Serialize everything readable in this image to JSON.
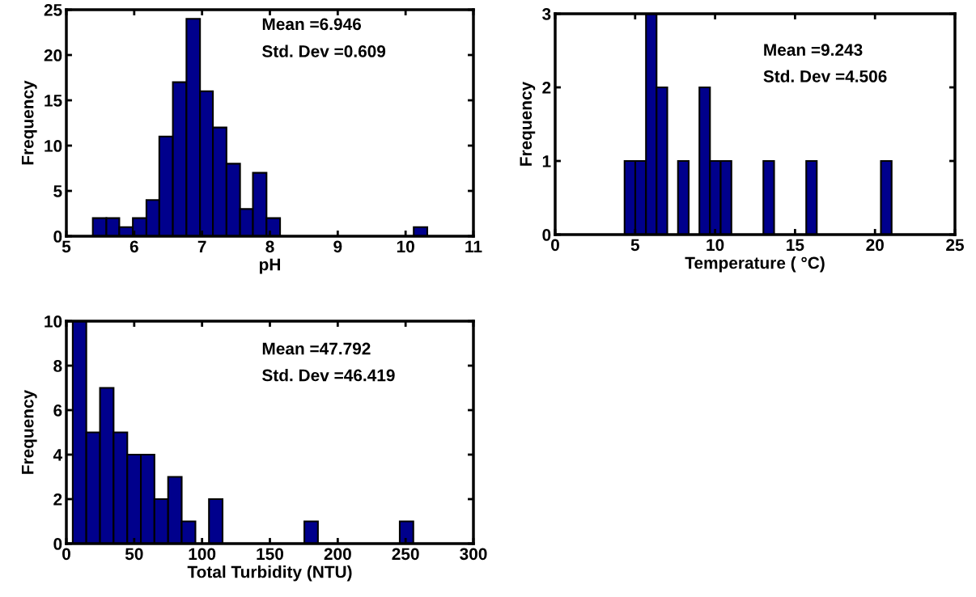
{
  "chart_data": [
    {
      "type": "histogram",
      "xlabel": "pH",
      "ylabel": "Frequency",
      "color": "#00008c",
      "bins": [
        5.39,
        5.59,
        5.78,
        5.98,
        6.18,
        6.37,
        6.57,
        6.77,
        6.97,
        7.16,
        7.36,
        7.56,
        7.75,
        7.95,
        8.15,
        8.35,
        8.54,
        8.74,
        8.94,
        9.13,
        9.33,
        9.53,
        9.72,
        9.92,
        10.12,
        10.32
      ],
      "values": [
        2,
        2,
        1,
        2,
        4,
        11,
        17,
        24,
        16,
        12,
        8,
        3,
        7,
        2,
        0,
        0,
        0,
        0,
        0,
        0,
        0,
        0,
        0,
        0,
        1
      ],
      "xlim": [
        5,
        11
      ],
      "xticks": [
        5,
        6,
        7,
        8,
        9,
        10,
        11
      ],
      "ylim": [
        0,
        25
      ],
      "yticks": [
        0,
        5,
        10,
        15,
        20,
        25
      ],
      "annotations": [
        "Mean =6.946",
        "Std. Dev =0.609"
      ]
    },
    {
      "type": "histogram",
      "xlabel": "Temperature ( °C)",
      "ylabel": "Frequency",
      "color": "#00008c",
      "bins": [
        4.34,
        5.01,
        5.68,
        6.34,
        7.01,
        7.68,
        8.35,
        9.02,
        9.68,
        10.35,
        11.02,
        11.69,
        12.36,
        13.02,
        13.69,
        14.36,
        15.03,
        15.7,
        16.36,
        17.03,
        17.7,
        18.37,
        19.04,
        19.7,
        20.37,
        21.04
      ],
      "values": [
        1,
        1,
        3,
        2,
        0,
        1,
        0,
        2,
        1,
        1,
        0,
        0,
        0,
        1,
        0,
        0,
        0,
        1,
        0,
        0,
        0,
        0,
        0,
        0,
        1
      ],
      "xlim": [
        0,
        25
      ],
      "xticks": [
        0,
        5,
        10,
        15,
        20,
        25
      ],
      "ylim": [
        0,
        3
      ],
      "yticks": [
        0,
        1,
        2,
        3
      ],
      "annotations": [
        "Mean =9.243",
        "Std. Dev =4.506"
      ]
    },
    {
      "type": "histogram",
      "xlabel": "Total Turbidity (NTU)",
      "ylabel": "Frequency",
      "color": "#00008c",
      "bins": [
        4.7,
        14.7,
        24.8,
        34.8,
        44.9,
        54.9,
        64.9,
        75.0,
        85.0,
        95.1,
        105.1,
        115.1,
        125.2,
        135.2,
        145.3,
        155.3,
        165.3,
        175.4,
        185.4,
        195.5,
        205.5,
        215.5,
        225.6,
        235.6,
        245.7,
        255.7
      ],
      "values": [
        10,
        5,
        7,
        5,
        4,
        4,
        2,
        3,
        1,
        0,
        2,
        0,
        0,
        0,
        0,
        0,
        0,
        1,
        0,
        0,
        0,
        0,
        0,
        0,
        1
      ],
      "xlim": [
        0,
        300
      ],
      "xticks": [
        0,
        50,
        100,
        150,
        200,
        250,
        300
      ],
      "ylim": [
        0,
        10
      ],
      "yticks": [
        0,
        2,
        4,
        6,
        8,
        10
      ],
      "annotations": [
        "Mean =47.792",
        "Std. Dev =46.419"
      ]
    }
  ]
}
